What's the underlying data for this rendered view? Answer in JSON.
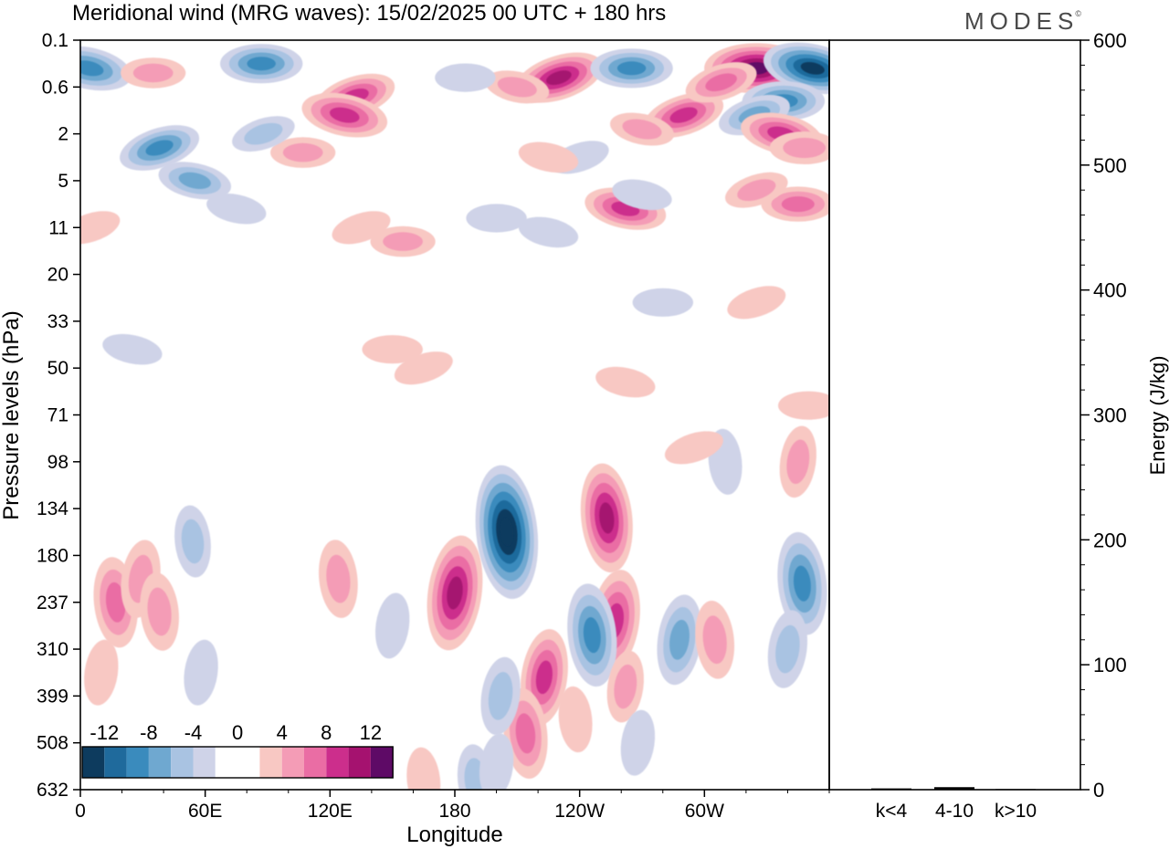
{
  "title": "Meridional wind (MRG waves):  15/02/2025  00 UTC  + 180 hrs",
  "brand": "MODES",
  "brand_mark": "©",
  "colors": {
    "neg": [
      "#0d3b5e",
      "#1f6a9c",
      "#3a8bbd",
      "#6fa8d0",
      "#a9c3e2",
      "#cfd3e8"
    ],
    "pos": [
      "#f8c8c3",
      "#f49cb6",
      "#ea6da4",
      "#cc2e8c",
      "#a5126f",
      "#5e0a66"
    ],
    "zero": "#ffffff"
  },
  "chart_data": [
    {
      "type": "heatmap",
      "title": "Meridional wind (MRG waves):  15/02/2025  00 UTC  + 180 hrs",
      "xlabel": "Longitude",
      "ylabel": "Pressure levels (hPa)",
      "x_ticks": [
        "0",
        "60E",
        "120E",
        "180",
        "120W",
        "60W"
      ],
      "x_tick_values": [
        0,
        60,
        120,
        180,
        240,
        300
      ],
      "xlim": [
        0,
        360
      ],
      "y_ticks": [
        "0.1",
        "0.6",
        "2",
        "5",
        "11",
        "20",
        "33",
        "50",
        "71",
        "98",
        "134",
        "180",
        "237",
        "310",
        "399",
        "508",
        "632"
      ],
      "colorbar": {
        "labels": [
          "-12",
          "-8",
          "-4",
          "0",
          "4",
          "8",
          "12"
        ],
        "label_values": [
          -12,
          -8,
          -4,
          0,
          4,
          8,
          12
        ],
        "levels": [
          -14,
          -12,
          -10,
          -8,
          -6,
          -4,
          -2,
          2,
          4,
          6,
          8,
          10,
          12,
          14
        ]
      },
      "features": [
        {
          "lon": 205,
          "lev": 10.5,
          "value": -14
        },
        {
          "lon": 180,
          "lev": 11.8,
          "value": 11
        },
        {
          "lon": 253,
          "lev": 10.2,
          "value": 10
        },
        {
          "lon": 257,
          "lev": 12.4,
          "value": 9
        },
        {
          "lon": 246,
          "lev": 12.7,
          "value": -9
        },
        {
          "lon": 223,
          "lev": 13.6,
          "value": 8
        },
        {
          "lon": 214,
          "lev": 14.8,
          "value": 7
        },
        {
          "lon": 202,
          "lev": 14.0,
          "value": -5
        },
        {
          "lon": 190,
          "lev": 15.8,
          "value": -4
        },
        {
          "lon": 288,
          "lev": 12.8,
          "value": -7
        },
        {
          "lon": 305,
          "lev": 12.8,
          "value": 5
        },
        {
          "lon": 262,
          "lev": 13.8,
          "value": 4
        },
        {
          "lon": 347,
          "lev": 11.6,
          "value": -9
        },
        {
          "lon": 340,
          "lev": 13.0,
          "value": -5
        },
        {
          "lon": 17,
          "lev": 12.0,
          "value": 7
        },
        {
          "lon": 29,
          "lev": 11.5,
          "value": 5
        },
        {
          "lon": 38,
          "lev": 12.2,
          "value": 5
        },
        {
          "lon": 10,
          "lev": 13.5,
          "value": 3
        },
        {
          "lon": 54,
          "lev": 10.7,
          "value": -4
        },
        {
          "lon": 58,
          "lev": 13.5,
          "value": -3
        },
        {
          "lon": 124,
          "lev": 11.5,
          "value": 5
        },
        {
          "lon": 150,
          "lev": 12.5,
          "value": -3
        },
        {
          "lon": 238,
          "lev": 14.5,
          "value": 3
        },
        {
          "lon": 268,
          "lev": 15.0,
          "value": -3
        },
        {
          "lon": 165,
          "lev": 15.8,
          "value": 3
        },
        {
          "lon": 345,
          "lev": 9.0,
          "value": 4
        },
        {
          "lon": 310,
          "lev": 9.0,
          "value": -3
        },
        {
          "lon": 200,
          "lev": 15.5,
          "value": -3
        },
        {
          "lon": 4,
          "lev": 0.6,
          "value": -9
        },
        {
          "lon": 87,
          "lev": 0.5,
          "value": -8
        },
        {
          "lon": 38,
          "lev": 2.3,
          "value": -8
        },
        {
          "lon": 55,
          "lev": 3.0,
          "value": -6
        },
        {
          "lon": 35,
          "lev": 0.7,
          "value": 4
        },
        {
          "lon": 132,
          "lev": 1.2,
          "value": 8
        },
        {
          "lon": 127,
          "lev": 1.6,
          "value": 9
        },
        {
          "lon": 107,
          "lev": 2.4,
          "value": 4
        },
        {
          "lon": 230,
          "lev": 0.8,
          "value": 10
        },
        {
          "lon": 210,
          "lev": 1.0,
          "value": 4
        },
        {
          "lon": 265,
          "lev": 0.6,
          "value": -8
        },
        {
          "lon": 290,
          "lev": 1.6,
          "value": 8
        },
        {
          "lon": 270,
          "lev": 1.9,
          "value": 4
        },
        {
          "lon": 325,
          "lev": 0.6,
          "value": 13
        },
        {
          "lon": 308,
          "lev": 0.9,
          "value": 6
        },
        {
          "lon": 352,
          "lev": 0.6,
          "value": -12
        },
        {
          "lon": 338,
          "lev": 1.3,
          "value": -8
        },
        {
          "lon": 324,
          "lev": 1.6,
          "value": -6
        },
        {
          "lon": 337,
          "lev": 2.0,
          "value": 8
        },
        {
          "lon": 348,
          "lev": 2.3,
          "value": 5
        },
        {
          "lon": 240,
          "lev": 2.5,
          "value": -3
        },
        {
          "lon": 225,
          "lev": 2.5,
          "value": 3
        },
        {
          "lon": 185,
          "lev": 0.8,
          "value": -3
        },
        {
          "lon": 88,
          "lev": 2.0,
          "value": -4
        },
        {
          "lon": 262,
          "lev": 3.6,
          "value": 8
        },
        {
          "lon": 345,
          "lev": 3.5,
          "value": 6
        },
        {
          "lon": 325,
          "lev": 3.2,
          "value": 4
        },
        {
          "lon": 270,
          "lev": 3.3,
          "value": -3
        },
        {
          "lon": 155,
          "lev": 4.3,
          "value": 4
        },
        {
          "lon": 135,
          "lev": 4.0,
          "value": 3
        },
        {
          "lon": 225,
          "lev": 4.1,
          "value": -3
        },
        {
          "lon": 200,
          "lev": 3.8,
          "value": -3
        },
        {
          "lon": 5,
          "lev": 4.0,
          "value": 3
        },
        {
          "lon": 75,
          "lev": 3.6,
          "value": -3
        },
        {
          "lon": 280,
          "lev": 5.6,
          "value": -3
        },
        {
          "lon": 325,
          "lev": 5.6,
          "value": 3
        },
        {
          "lon": 25,
          "lev": 6.6,
          "value": -3
        },
        {
          "lon": 150,
          "lev": 6.6,
          "value": 3
        },
        {
          "lon": 165,
          "lev": 7.0,
          "value": 3
        },
        {
          "lon": 262,
          "lev": 7.3,
          "value": 3
        },
        {
          "lon": 350,
          "lev": 7.8,
          "value": 3
        },
        {
          "lon": 295,
          "lev": 8.7,
          "value": 3
        }
      ]
    },
    {
      "type": "bar",
      "ylabel": "Energy (J/kg)",
      "categories": [
        "k<4",
        "4-10",
        "k>10"
      ],
      "values": [
        1,
        2,
        0.5
      ],
      "ylim": [
        0,
        600
      ],
      "y_ticks": [
        "0",
        "100",
        "200",
        "300",
        "400",
        "500",
        "600"
      ]
    }
  ]
}
